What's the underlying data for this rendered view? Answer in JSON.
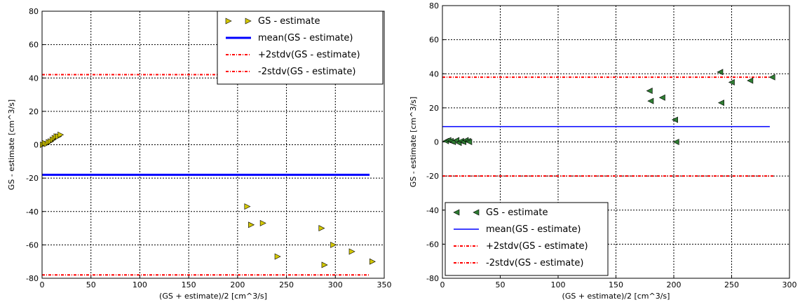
{
  "chart_data": [
    {
      "type": "scatter",
      "xlabel": "(GS + estimate)/2 [cm^3/s]",
      "ylabel": "GS - estimate [cm^3/s]",
      "xlim": [
        0,
        350
      ],
      "ylim": [
        -80,
        80
      ],
      "xticks": [
        "0",
        "50",
        "100",
        "150",
        "200",
        "250",
        "300",
        "350"
      ],
      "yticks": [
        "-80",
        "-60",
        "-40",
        "-20",
        "0",
        "20",
        "40",
        "60",
        "80"
      ],
      "grid": true,
      "legend_position": "top-right",
      "marker": "triangle-right",
      "colors": {
        "points": "#d4c800",
        "mean": "#0000ff",
        "stdv": "#ff0000"
      },
      "points": {
        "name": "GS - estimate",
        "x": [
          1,
          3,
          5,
          7,
          9,
          11,
          13,
          15,
          17,
          19,
          210,
          214,
          226,
          241,
          286,
          289,
          298,
          317,
          338
        ],
        "y": [
          0,
          1,
          0.5,
          1.5,
          2,
          3,
          4,
          5,
          5,
          6,
          -37,
          -48,
          -47,
          -67,
          -50,
          -72,
          -60,
          -64,
          -70
        ]
      },
      "lines": [
        {
          "name": "mean(GS - estimate)",
          "y": -18,
          "x_range": [
            0,
            335
          ],
          "style": "solid"
        },
        {
          "name": "+2stdv(GS - estimate)",
          "y": 42,
          "x_range": [
            0,
            335
          ],
          "style": "dashed"
        },
        {
          "name": "-2stdv(GS - estimate)",
          "y": -78,
          "x_range": [
            0,
            335
          ],
          "style": "dashed"
        }
      ]
    },
    {
      "type": "scatter",
      "xlabel": "(GS + estimate)/2 [cm^3/s]",
      "ylabel": "GS - estimate [cm^3/s]",
      "xlim": [
        0,
        300
      ],
      "ylim": [
        -80,
        80
      ],
      "xticks": [
        "0",
        "50",
        "100",
        "150",
        "200",
        "250",
        "300"
      ],
      "yticks": [
        "-80",
        "-60",
        "-40",
        "-20",
        "0",
        "20",
        "40",
        "60",
        "80"
      ],
      "grid": true,
      "legend_position": "bottom-left",
      "marker": "triangle-left",
      "colors": {
        "points": "#2e7d32",
        "mean": "#0000ff",
        "stdv": "#ff0000"
      },
      "points": {
        "name": "GS - estimate",
        "x": [
          3,
          5,
          7,
          9,
          12,
          14,
          16,
          18,
          20,
          22,
          23,
          179,
          180,
          190,
          201,
          202,
          240,
          241,
          250,
          266,
          285
        ],
        "y": [
          0.5,
          1,
          0.5,
          0,
          1,
          -0.5,
          0.5,
          0,
          1,
          0.5,
          0,
          30,
          24,
          26,
          13,
          0,
          41,
          23,
          35,
          36,
          38
        ]
      },
      "lines": [
        {
          "name": "mean(GS - estimate)",
          "y": 9,
          "x_range": [
            0,
            283
          ],
          "style": "solid"
        },
        {
          "name": "+2stdv(GS - estimate)",
          "y": 38,
          "x_range": [
            0,
            287
          ],
          "style": "dashed"
        },
        {
          "name": "-2stdv(GS - estimate)",
          "y": -20,
          "x_range": [
            0,
            287
          ],
          "style": "dashed"
        }
      ]
    }
  ]
}
